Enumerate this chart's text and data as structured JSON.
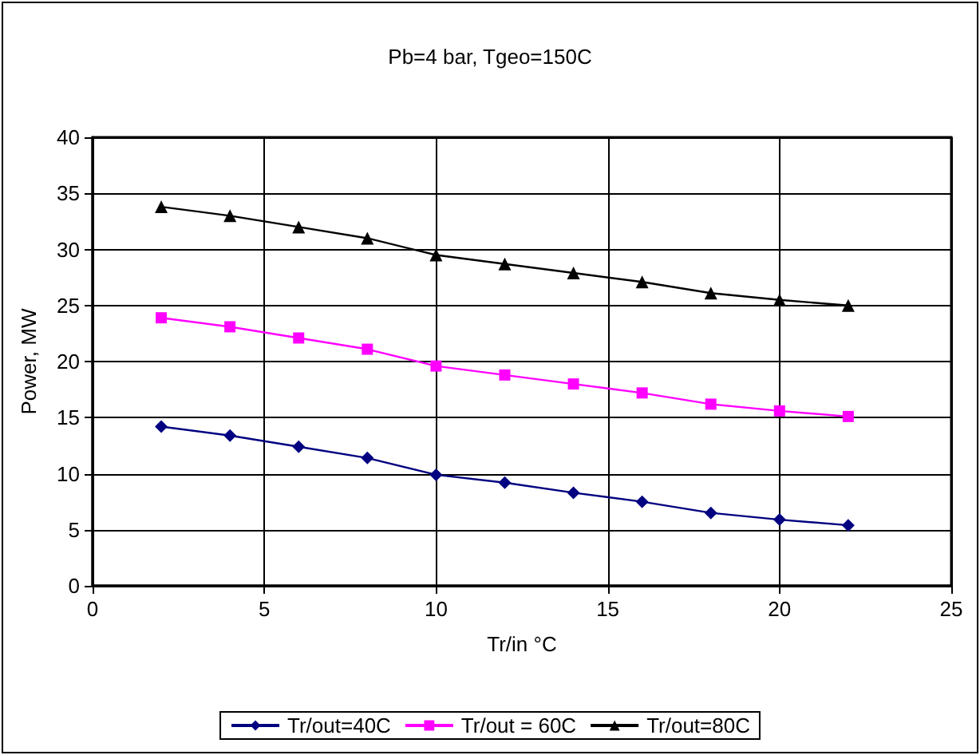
{
  "chart_data": {
    "type": "line",
    "title": "Pb=4 bar, Tgeo=150C",
    "xlabel": "Tr/in °C",
    "ylabel": "Power, MW",
    "x": [
      2,
      4,
      6,
      8,
      10,
      12,
      14,
      16,
      18,
      20,
      22
    ],
    "series": [
      {
        "name": "Tr/out=40C",
        "color": "#000080",
        "marker": "diamond",
        "values": [
          14.2,
          13.4,
          12.4,
          11.4,
          9.9,
          9.2,
          8.3,
          7.5,
          6.5,
          5.9,
          5.4
        ]
      },
      {
        "name": "Tr/out = 60C",
        "color": "#ff00ff",
        "marker": "square",
        "values": [
          23.9,
          23.1,
          22.1,
          21.1,
          19.6,
          18.8,
          18.0,
          17.2,
          16.2,
          15.6,
          15.1
        ]
      },
      {
        "name": "Tr/out=80C",
        "color": "#000000",
        "marker": "triangle",
        "values": [
          33.8,
          33.0,
          32.0,
          31.0,
          29.5,
          28.7,
          27.9,
          27.1,
          26.1,
          25.5,
          25.0
        ]
      }
    ],
    "xlim": [
      0,
      25
    ],
    "xticks": [
      0,
      5,
      10,
      15,
      20,
      25
    ],
    "ylim": [
      0,
      40
    ],
    "yticks": [
      0,
      5,
      10,
      15,
      20,
      25,
      30,
      35,
      40
    ],
    "grid": true,
    "legend": "bottom",
    "line_style": "solid"
  }
}
